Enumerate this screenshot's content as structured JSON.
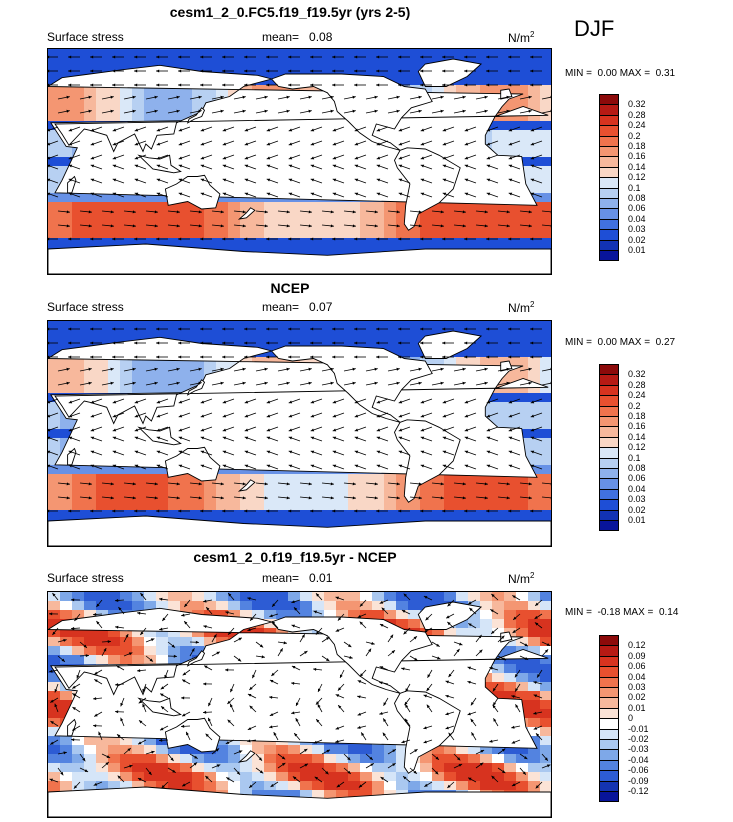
{
  "season": "DJF",
  "panels": [
    {
      "id": "model",
      "title": "cesm1_2_0.FC5.f19_f19.5yr (yrs 2-5)",
      "left_label": "Surface stress",
      "mean_label": "mean=",
      "mean_value": "0.08",
      "units": "N/m",
      "units_sup": "2",
      "min_label": "MIN =",
      "min_value": "0.00",
      "max_label": "MAX =",
      "max_value": "0.31",
      "palette": "abs"
    },
    {
      "id": "obs",
      "title": "NCEP",
      "left_label": "Surface stress",
      "mean_label": "mean=",
      "mean_value": "0.07",
      "units": "N/m",
      "units_sup": "2",
      "min_label": "MIN =",
      "min_value": "0.00",
      "max_label": "MAX =",
      "max_value": "0.27",
      "palette": "abs"
    },
    {
      "id": "diff",
      "title": "cesm1_2_0.f19_f19.5yr - NCEP",
      "left_label": "Surface stress",
      "mean_label": "mean=",
      "mean_value": "0.01",
      "units": "N/m",
      "units_sup": "2",
      "min_label": "MIN =",
      "min_value": "-0.18",
      "max_label": "MAX =",
      "max_value": "0.14",
      "palette": "diff"
    }
  ],
  "chart_data": [
    {
      "type": "heatmap",
      "title": "cesm1_2_0.FC5.f19_f19.5yr (yrs 2-5)",
      "variable": "Surface stress",
      "units": "N/m2",
      "mean": 0.08,
      "min": 0.0,
      "max": 0.31,
      "contour_levels": [
        0.01,
        0.02,
        0.03,
        0.04,
        0.06,
        0.08,
        0.1,
        0.12,
        0.14,
        0.16,
        0.18,
        0.2,
        0.24,
        0.28,
        0.32
      ],
      "colorbar_ticks": [
        "0.32",
        "0.28",
        "0.24",
        "0.2",
        "0.18",
        "0.16",
        "0.14",
        "0.12",
        "0.1",
        "0.08",
        "0.06",
        "0.04",
        "0.03",
        "0.02",
        "0.01"
      ],
      "colors": [
        "#8c0a0a",
        "#b61a14",
        "#d7331f",
        "#e8502f",
        "#f0734d",
        "#f49672",
        "#f7b89c",
        "#f9d7c6",
        "#dae8f8",
        "#b7d0f2",
        "#8eb1ec",
        "#6791e6",
        "#4171e0",
        "#1e4ed6",
        "#1232b4",
        "#08149a"
      ],
      "overlay": "wind stress vectors"
    },
    {
      "type": "heatmap",
      "title": "NCEP",
      "variable": "Surface stress",
      "units": "N/m2",
      "mean": 0.07,
      "min": 0.0,
      "max": 0.27,
      "contour_levels": [
        0.01,
        0.02,
        0.03,
        0.04,
        0.06,
        0.08,
        0.1,
        0.12,
        0.14,
        0.16,
        0.18,
        0.2,
        0.24,
        0.28,
        0.32
      ],
      "colorbar_ticks": [
        "0.32",
        "0.28",
        "0.24",
        "0.2",
        "0.18",
        "0.16",
        "0.14",
        "0.12",
        "0.1",
        "0.08",
        "0.06",
        "0.04",
        "0.03",
        "0.02",
        "0.01"
      ],
      "colors": [
        "#8c0a0a",
        "#b61a14",
        "#d7331f",
        "#e8502f",
        "#f0734d",
        "#f49672",
        "#f7b89c",
        "#f9d7c6",
        "#dae8f8",
        "#b7d0f2",
        "#8eb1ec",
        "#6791e6",
        "#4171e0",
        "#1e4ed6",
        "#1232b4",
        "#08149a"
      ],
      "overlay": "wind stress vectors"
    },
    {
      "type": "heatmap",
      "title": "cesm1_2_0.f19_f19.5yr - NCEP",
      "variable": "Surface stress",
      "units": "N/m2",
      "mean": 0.01,
      "min": -0.18,
      "max": 0.14,
      "contour_levels": [
        -0.12,
        -0.09,
        -0.06,
        -0.04,
        -0.03,
        -0.02,
        -0.01,
        0,
        0.01,
        0.02,
        0.03,
        0.04,
        0.06,
        0.09,
        0.12
      ],
      "colorbar_ticks": [
        "0.12",
        "0.09",
        "0.06",
        "0.04",
        "0.03",
        "0.02",
        "0.01",
        "0",
        "-0.01",
        "-0.02",
        "-0.03",
        "-0.04",
        "-0.06",
        "-0.09",
        "-0.12"
      ],
      "colors": [
        "#8c0a0a",
        "#b61a14",
        "#d7331f",
        "#e8502f",
        "#f0734d",
        "#f49672",
        "#f7b89c",
        "#fbe3d6",
        "#ffffff",
        "#d5e5f8",
        "#aac8f0",
        "#7ea8e8",
        "#5383e0",
        "#2d5cd4",
        "#1434b2",
        "#08149a"
      ],
      "overlay": "wind stress difference vectors"
    }
  ]
}
